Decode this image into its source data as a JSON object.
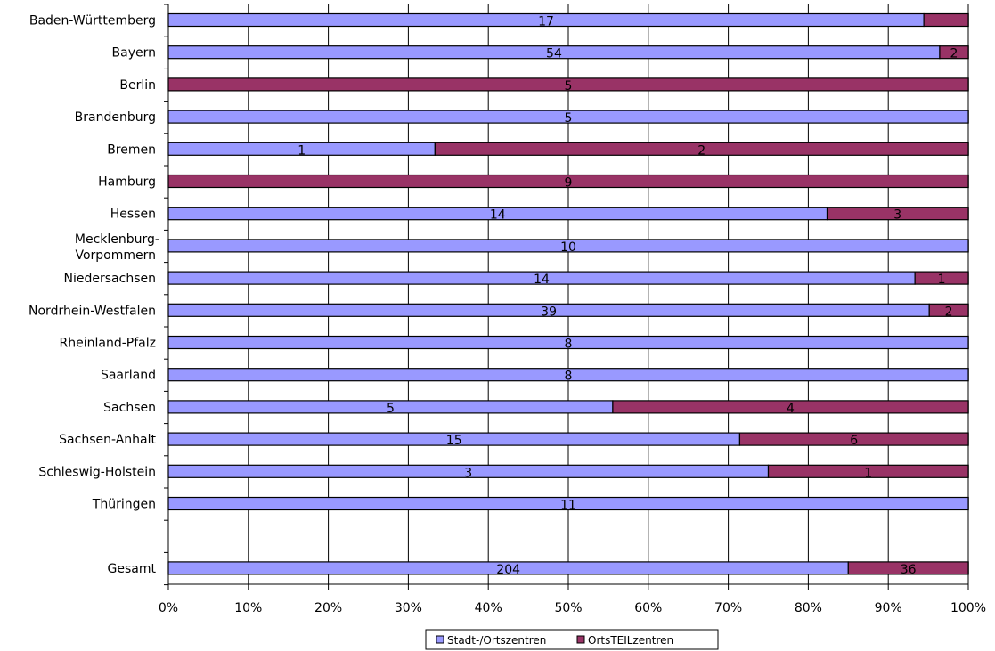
{
  "chart_data": {
    "type": "bar",
    "orientation": "horizontal",
    "stacked": true,
    "normalized": true,
    "categories": [
      "Baden-Württemberg",
      "Bayern",
      "Berlin",
      "Brandenburg",
      "Bremen",
      "Hamburg",
      "Hessen",
      "Mecklenburg-Vorpommern",
      "Niedersachsen",
      "Nordrhein-Westfalen",
      "Rheinland-Pfalz",
      "Saarland",
      "Sachsen",
      "Sachsen-Anhalt",
      "Schleswig-Holstein",
      "Thüringen",
      "",
      "Gesamt"
    ],
    "category_lines": [
      [
        "Baden-Württemberg"
      ],
      [
        "Bayern"
      ],
      [
        "Berlin"
      ],
      [
        "Brandenburg"
      ],
      [
        "Bremen"
      ],
      [
        "Hamburg"
      ],
      [
        "Hessen"
      ],
      [
        "Mecklenburg-",
        "Vorpommern"
      ],
      [
        "Niedersachsen"
      ],
      [
        "Nordrhein-Westfalen"
      ],
      [
        "Rheinland-Pfalz"
      ],
      [
        "Saarland"
      ],
      [
        "Sachsen"
      ],
      [
        "Sachsen-Anhalt"
      ],
      [
        "Schleswig-Holstein"
      ],
      [
        "Thüringen"
      ],
      [],
      [
        "Gesamt"
      ]
    ],
    "series": [
      {
        "name": "Stadt-/Ortszentren",
        "color": "#9999ff",
        "values": [
          17,
          54,
          0,
          5,
          1,
          0,
          14,
          10,
          14,
          39,
          8,
          8,
          5,
          15,
          3,
          11,
          null,
          204
        ],
        "labels": [
          "17",
          "54",
          "",
          "5",
          "1",
          "",
          "14",
          "10",
          "14",
          "39",
          "8",
          "8",
          "5",
          "15",
          "3",
          "11",
          "",
          "204"
        ]
      },
      {
        "name": "OrtsTEILzentren",
        "color": "#993366",
        "values": [
          1,
          2,
          5,
          0,
          2,
          9,
          3,
          0,
          1,
          2,
          0,
          0,
          4,
          6,
          1,
          0,
          null,
          36
        ],
        "labels": [
          "",
          "2",
          "5",
          "",
          "2",
          "9",
          "3",
          "",
          "1",
          "2",
          "",
          "",
          "4",
          "6",
          "1",
          "",
          "",
          "36"
        ]
      }
    ],
    "xlim": [
      0,
      100
    ],
    "x_ticks": [
      "0%",
      "10%",
      "20%",
      "30%",
      "40%",
      "50%",
      "60%",
      "70%",
      "80%",
      "90%",
      "100%"
    ],
    "grid": "vertical",
    "legend_position": "bottom",
    "title": "",
    "xlabel": "",
    "ylabel": ""
  }
}
